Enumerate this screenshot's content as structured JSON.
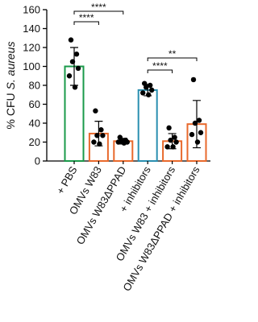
{
  "chart_data": {
    "type": "bar",
    "ylabel": [
      "% CFU",
      "S. aureus"
    ],
    "categories": [
      "+ PBS",
      "OMVs W83",
      "OMVs W83ΔPPAD",
      "+ inhibitors",
      "OMVs W83 + inhibitors",
      "OMVs W83ΔPPAD + inhibitors"
    ],
    "values": [
      100,
      29,
      21,
      75,
      21,
      39
    ],
    "errors": [
      20,
      13,
      3,
      6,
      8,
      25
    ],
    "colors": [
      "#1a9a4a",
      "#e8692c",
      "#e8692c",
      "#2a8fb0",
      "#e8692c",
      "#e8692c"
    ],
    "points": [
      [
        128,
        113,
        105,
        98,
        90,
        78
      ],
      [
        53,
        33,
        27,
        27,
        20,
        18
      ],
      [
        25,
        22,
        21,
        20,
        20,
        19
      ],
      [
        82,
        80,
        78,
        75,
        72,
        70
      ],
      [
        35,
        25,
        22,
        20,
        15,
        15
      ],
      [
        86,
        43,
        40,
        30,
        28,
        20
      ]
    ],
    "ylim": [
      0,
      160
    ],
    "yticks": [
      0,
      20,
      40,
      60,
      80,
      100,
      120,
      140,
      160
    ],
    "significance": [
      {
        "from": 0,
        "to": 2,
        "label": "****"
      },
      {
        "from": 0,
        "to": 1,
        "label": "****"
      },
      {
        "from": 3,
        "to": 5,
        "label": "**"
      },
      {
        "from": 3,
        "to": 4,
        "label": "****"
      }
    ]
  }
}
